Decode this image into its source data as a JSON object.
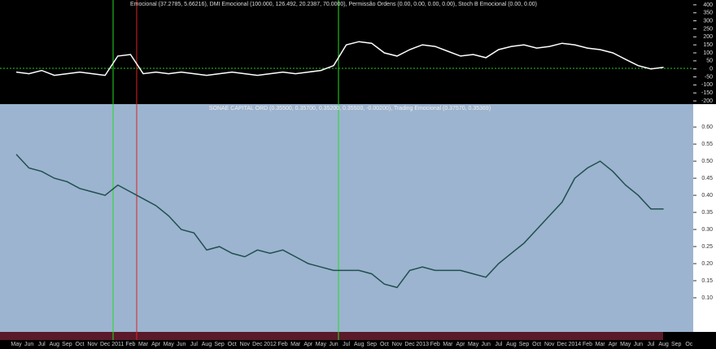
{
  "chart_data": [
    {
      "type": "line",
      "title": "Emocional (37.2785, 5.66216), DMI Emocional (100.000, 126.492, 20.2387, 70.0000), Permissão Ordens (0.00, 0.00, 0.00, 0.00), Stoch B Emocional (0.00, 0.00)",
      "values": [
        -20,
        -30,
        -10,
        -40,
        -30,
        -20,
        -30,
        -40,
        80,
        90,
        -30,
        -20,
        -30,
        -20,
        -30,
        -40,
        -30,
        -20,
        -30,
        -40,
        -30,
        -20,
        -30,
        -20,
        -10,
        20,
        150,
        170,
        160,
        100,
        80,
        120,
        150,
        140,
        110,
        80,
        90,
        70,
        120,
        140,
        150,
        130,
        140,
        160,
        150,
        130,
        120,
        100,
        60,
        20,
        0,
        10,
        null,
        null
      ],
      "color": "#ffffff",
      "ylim": [
        -220,
        430
      ],
      "yticks": [
        400,
        350,
        300,
        250,
        200,
        150,
        100,
        50,
        0,
        -50,
        -100,
        -150,
        -200
      ],
      "grid": false
    },
    {
      "type": "line",
      "title": "SONAE CAPITAL ORD (0.35500, 0.35700, 0.35200, 0.35500, -0.00200), Trading Emocional (0.37570, 0.35369)",
      "categories": [
        "May",
        "Jun",
        "Jul",
        "Aug",
        "Sep",
        "Oct",
        "Nov",
        "Dec",
        "2011",
        "Feb",
        "Mar",
        "Apr",
        "May",
        "Jun",
        "Jul",
        "Aug",
        "Sep",
        "Oct",
        "Nov",
        "Dec",
        "2012",
        "Feb",
        "Mar",
        "Apr",
        "May",
        "Jun",
        "Jul",
        "Aug",
        "Sep",
        "Oct",
        "Nov",
        "Dec",
        "2013",
        "Feb",
        "Mar",
        "Apr",
        "May",
        "Jun",
        "Jul",
        "Aug",
        "Sep",
        "Oct",
        "Nov",
        "Dec",
        "2014",
        "Feb",
        "Mar",
        "Apr",
        "May",
        "Jun",
        "Jul",
        "Aug",
        "Sep",
        "Oc"
      ],
      "values": [
        0.52,
        0.48,
        0.47,
        0.45,
        0.44,
        0.42,
        0.41,
        0.4,
        0.43,
        0.41,
        0.39,
        0.37,
        0.34,
        0.3,
        0.29,
        0.24,
        0.25,
        0.23,
        0.22,
        0.24,
        0.23,
        0.24,
        0.22,
        0.2,
        0.19,
        0.18,
        0.18,
        0.18,
        0.17,
        0.14,
        0.13,
        0.18,
        0.19,
        0.18,
        0.18,
        0.18,
        0.17,
        0.16,
        0.2,
        0.23,
        0.26,
        0.3,
        0.34,
        0.38,
        0.45,
        0.48,
        0.5,
        0.47,
        0.43,
        0.4,
        0.36,
        0.36,
        null,
        null
      ],
      "color": "#1f4f4f",
      "ylim": [
        0,
        0.667
      ],
      "yticks": [
        {
          "value": 0.6,
          "label": "0.60"
        },
        {
          "value": 0.55,
          "label": "0.55"
        },
        {
          "value": 0.5,
          "label": "0.50"
        },
        {
          "value": 0.45,
          "label": "0.45"
        },
        {
          "value": 0.4,
          "label": "0.40"
        },
        {
          "value": 0.35,
          "label": "0.35"
        },
        {
          "value": 0.3,
          "label": "0.30"
        },
        {
          "value": 0.25,
          "label": "0.25"
        },
        {
          "value": 0.2,
          "label": "0.20"
        },
        {
          "value": 0.15,
          "label": "0.15"
        },
        {
          "value": 0.1,
          "label": "0.10"
        }
      ],
      "grid": false
    }
  ]
}
